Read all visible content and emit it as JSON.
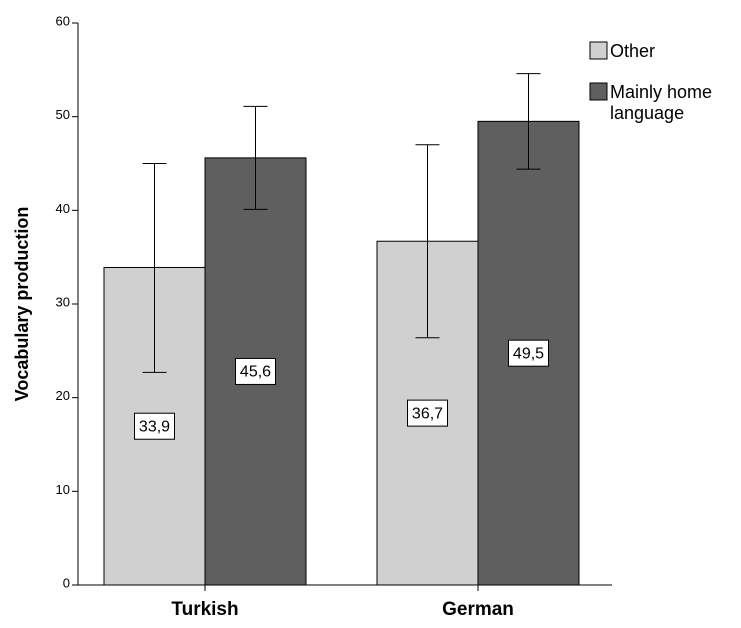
{
  "chart_data": {
    "type": "bar",
    "ylabel": "Vocabulary production",
    "ylim": [
      0,
      60
    ],
    "yticks": [
      0,
      10,
      20,
      30,
      40,
      50,
      60
    ],
    "categories": [
      "Turkish",
      "German"
    ],
    "series": [
      {
        "name": "Other",
        "color": "#d0d0d0",
        "values": [
          33.9,
          36.7
        ],
        "value_labels": [
          "33,9",
          "36,7"
        ],
        "error_low": [
          22.7,
          26.4
        ],
        "error_high": [
          45.0,
          47.0
        ]
      },
      {
        "name": "Mainly home language",
        "color": "#5f5f5f",
        "values": [
          45.6,
          49.5
        ],
        "value_labels": [
          "45,6",
          "49,5"
        ],
        "error_low": [
          40.1,
          44.4
        ],
        "error_high": [
          51.1,
          54.6
        ]
      }
    ],
    "legend": {
      "position": "top-right",
      "entries": [
        {
          "lines": [
            "Other"
          ]
        },
        {
          "lines": [
            "Mainly home",
            "language"
          ]
        }
      ]
    },
    "grid": false
  }
}
